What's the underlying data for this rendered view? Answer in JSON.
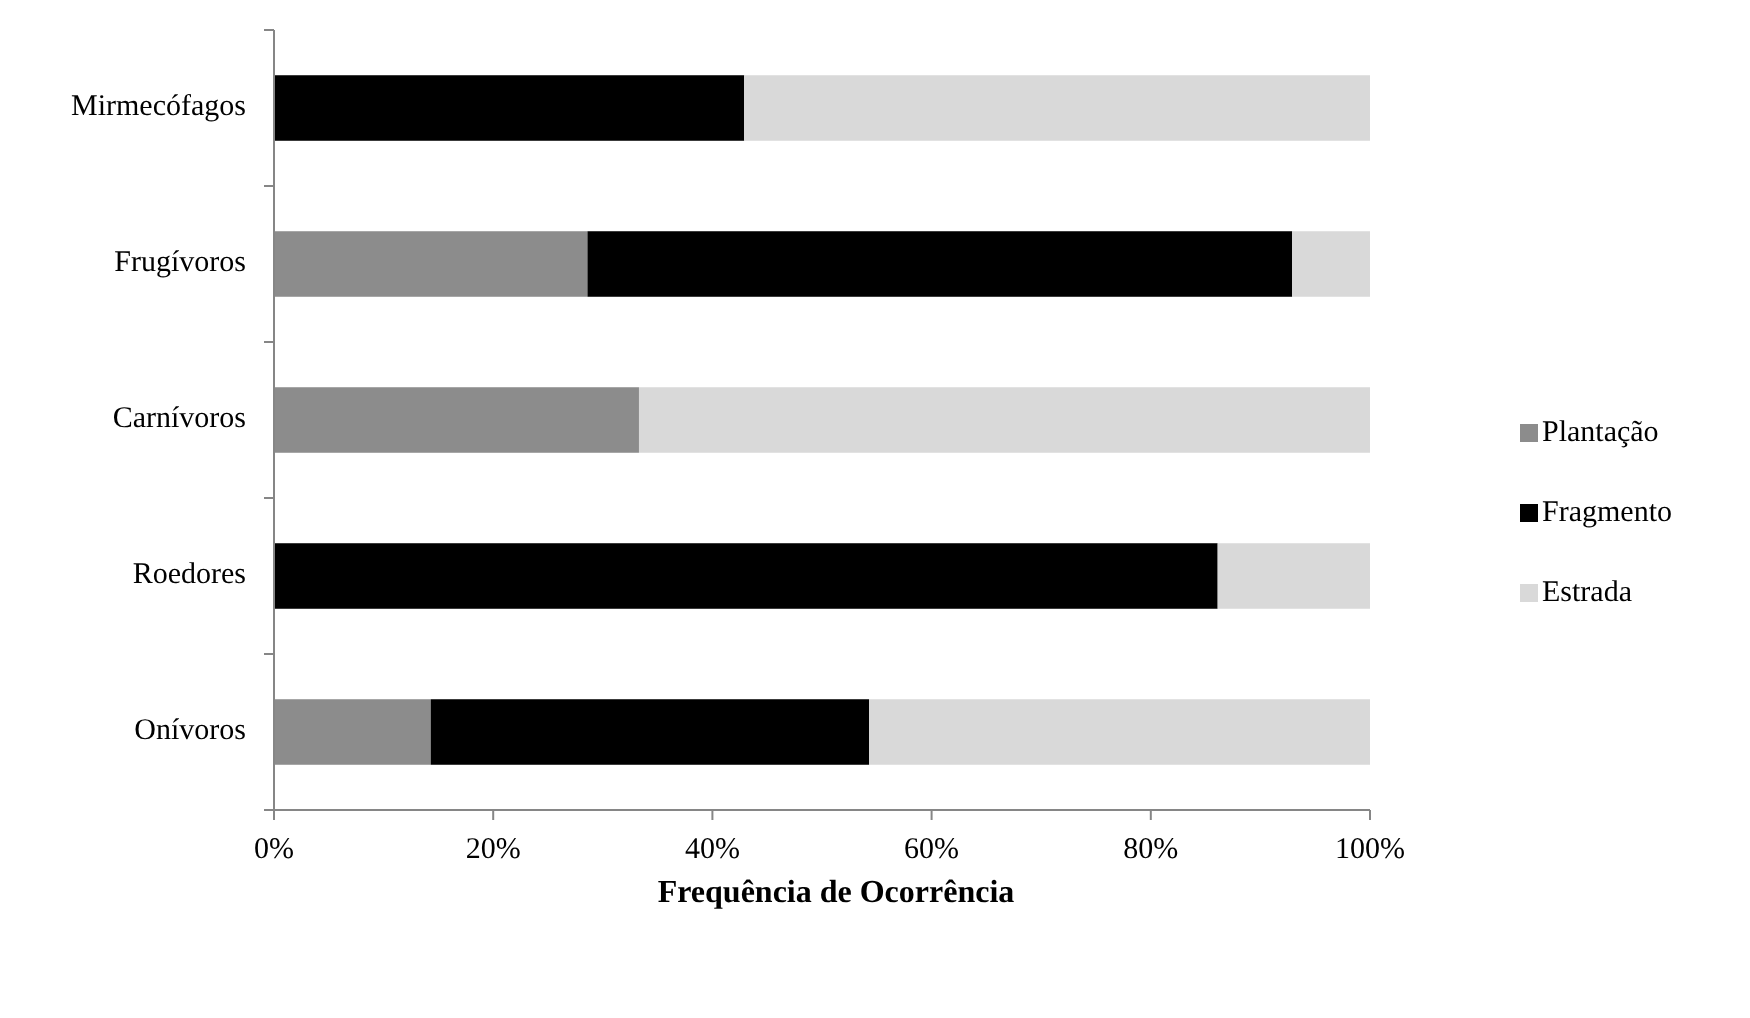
{
  "chart_data": {
    "type": "bar",
    "orientation": "horizontal",
    "stacked": true,
    "xlabel": "Frequência de Ocorrência",
    "categories": [
      "Mirmecófagos",
      "Frugívoros",
      "Carnívoros",
      "Roedores",
      "Onívoros"
    ],
    "series": [
      {
        "name": "Plantação",
        "color": "#8c8c8c",
        "values": [
          0,
          28.6,
          33.3,
          0,
          14.3
        ]
      },
      {
        "name": "Fragmento",
        "color": "#000000",
        "values": [
          42.9,
          64.3,
          0,
          86.1,
          40
        ]
      },
      {
        "name": "Estrada",
        "color": "#d9d9d9",
        "values": [
          57.1,
          7.1,
          66.7,
          13.9,
          45.7
        ]
      }
    ],
    "xlim": [
      0,
      100
    ],
    "xticks": [
      {
        "value": 0,
        "label": "0%"
      },
      {
        "value": 20,
        "label": "20%"
      },
      {
        "value": 40,
        "label": "40%"
      },
      {
        "value": 60,
        "label": "60%"
      },
      {
        "value": 80,
        "label": "80%"
      },
      {
        "value": 100,
        "label": "100%"
      }
    ],
    "grid": false,
    "legend": "right"
  }
}
